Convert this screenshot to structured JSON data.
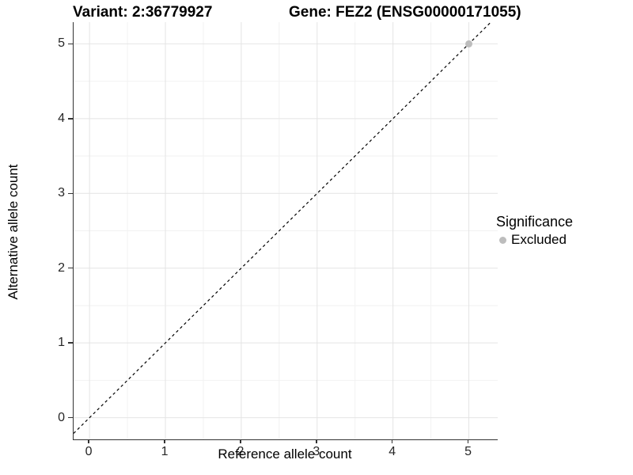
{
  "titles": {
    "variant": "Variant: 2:36779927",
    "gene": "Gene: FEZ2 (ENSG00000171055)"
  },
  "chart_data": {
    "type": "scatter",
    "title_left": "Variant: 2:36779927",
    "title_right": "Gene: FEZ2 (ENSG00000171055)",
    "xlabel": "Reference allele count",
    "ylabel": "Alternative allele count",
    "xlim": [
      -0.21,
      5.38
    ],
    "ylim": [
      -0.29,
      5.29
    ],
    "x_ticks": [
      0,
      1,
      2,
      3,
      4,
      5
    ],
    "y_ticks": [
      0,
      1,
      2,
      3,
      4,
      5
    ],
    "grid": "on",
    "grid_minor_step": 0.5,
    "legend": {
      "position": "right",
      "title": "Significance",
      "entries": [
        {
          "label": "Excluded",
          "color": "#bdbdbd"
        }
      ]
    },
    "series": [
      {
        "name": "Excluded",
        "color": "#bdbdbd",
        "point_radius": 4.5,
        "points": [
          {
            "x": 5,
            "y": 5
          }
        ]
      }
    ],
    "reference_line": {
      "equation": "y = x",
      "style": "dashed",
      "color": "#000000"
    },
    "colors": {
      "background": "#ffffff",
      "grid_major": "#e4e4e4",
      "grid_minor": "#f2f2f2",
      "axis_line": "#333333",
      "tick_label": "#262626",
      "point": "#bdbdbd",
      "reference_line": "#000000"
    }
  }
}
